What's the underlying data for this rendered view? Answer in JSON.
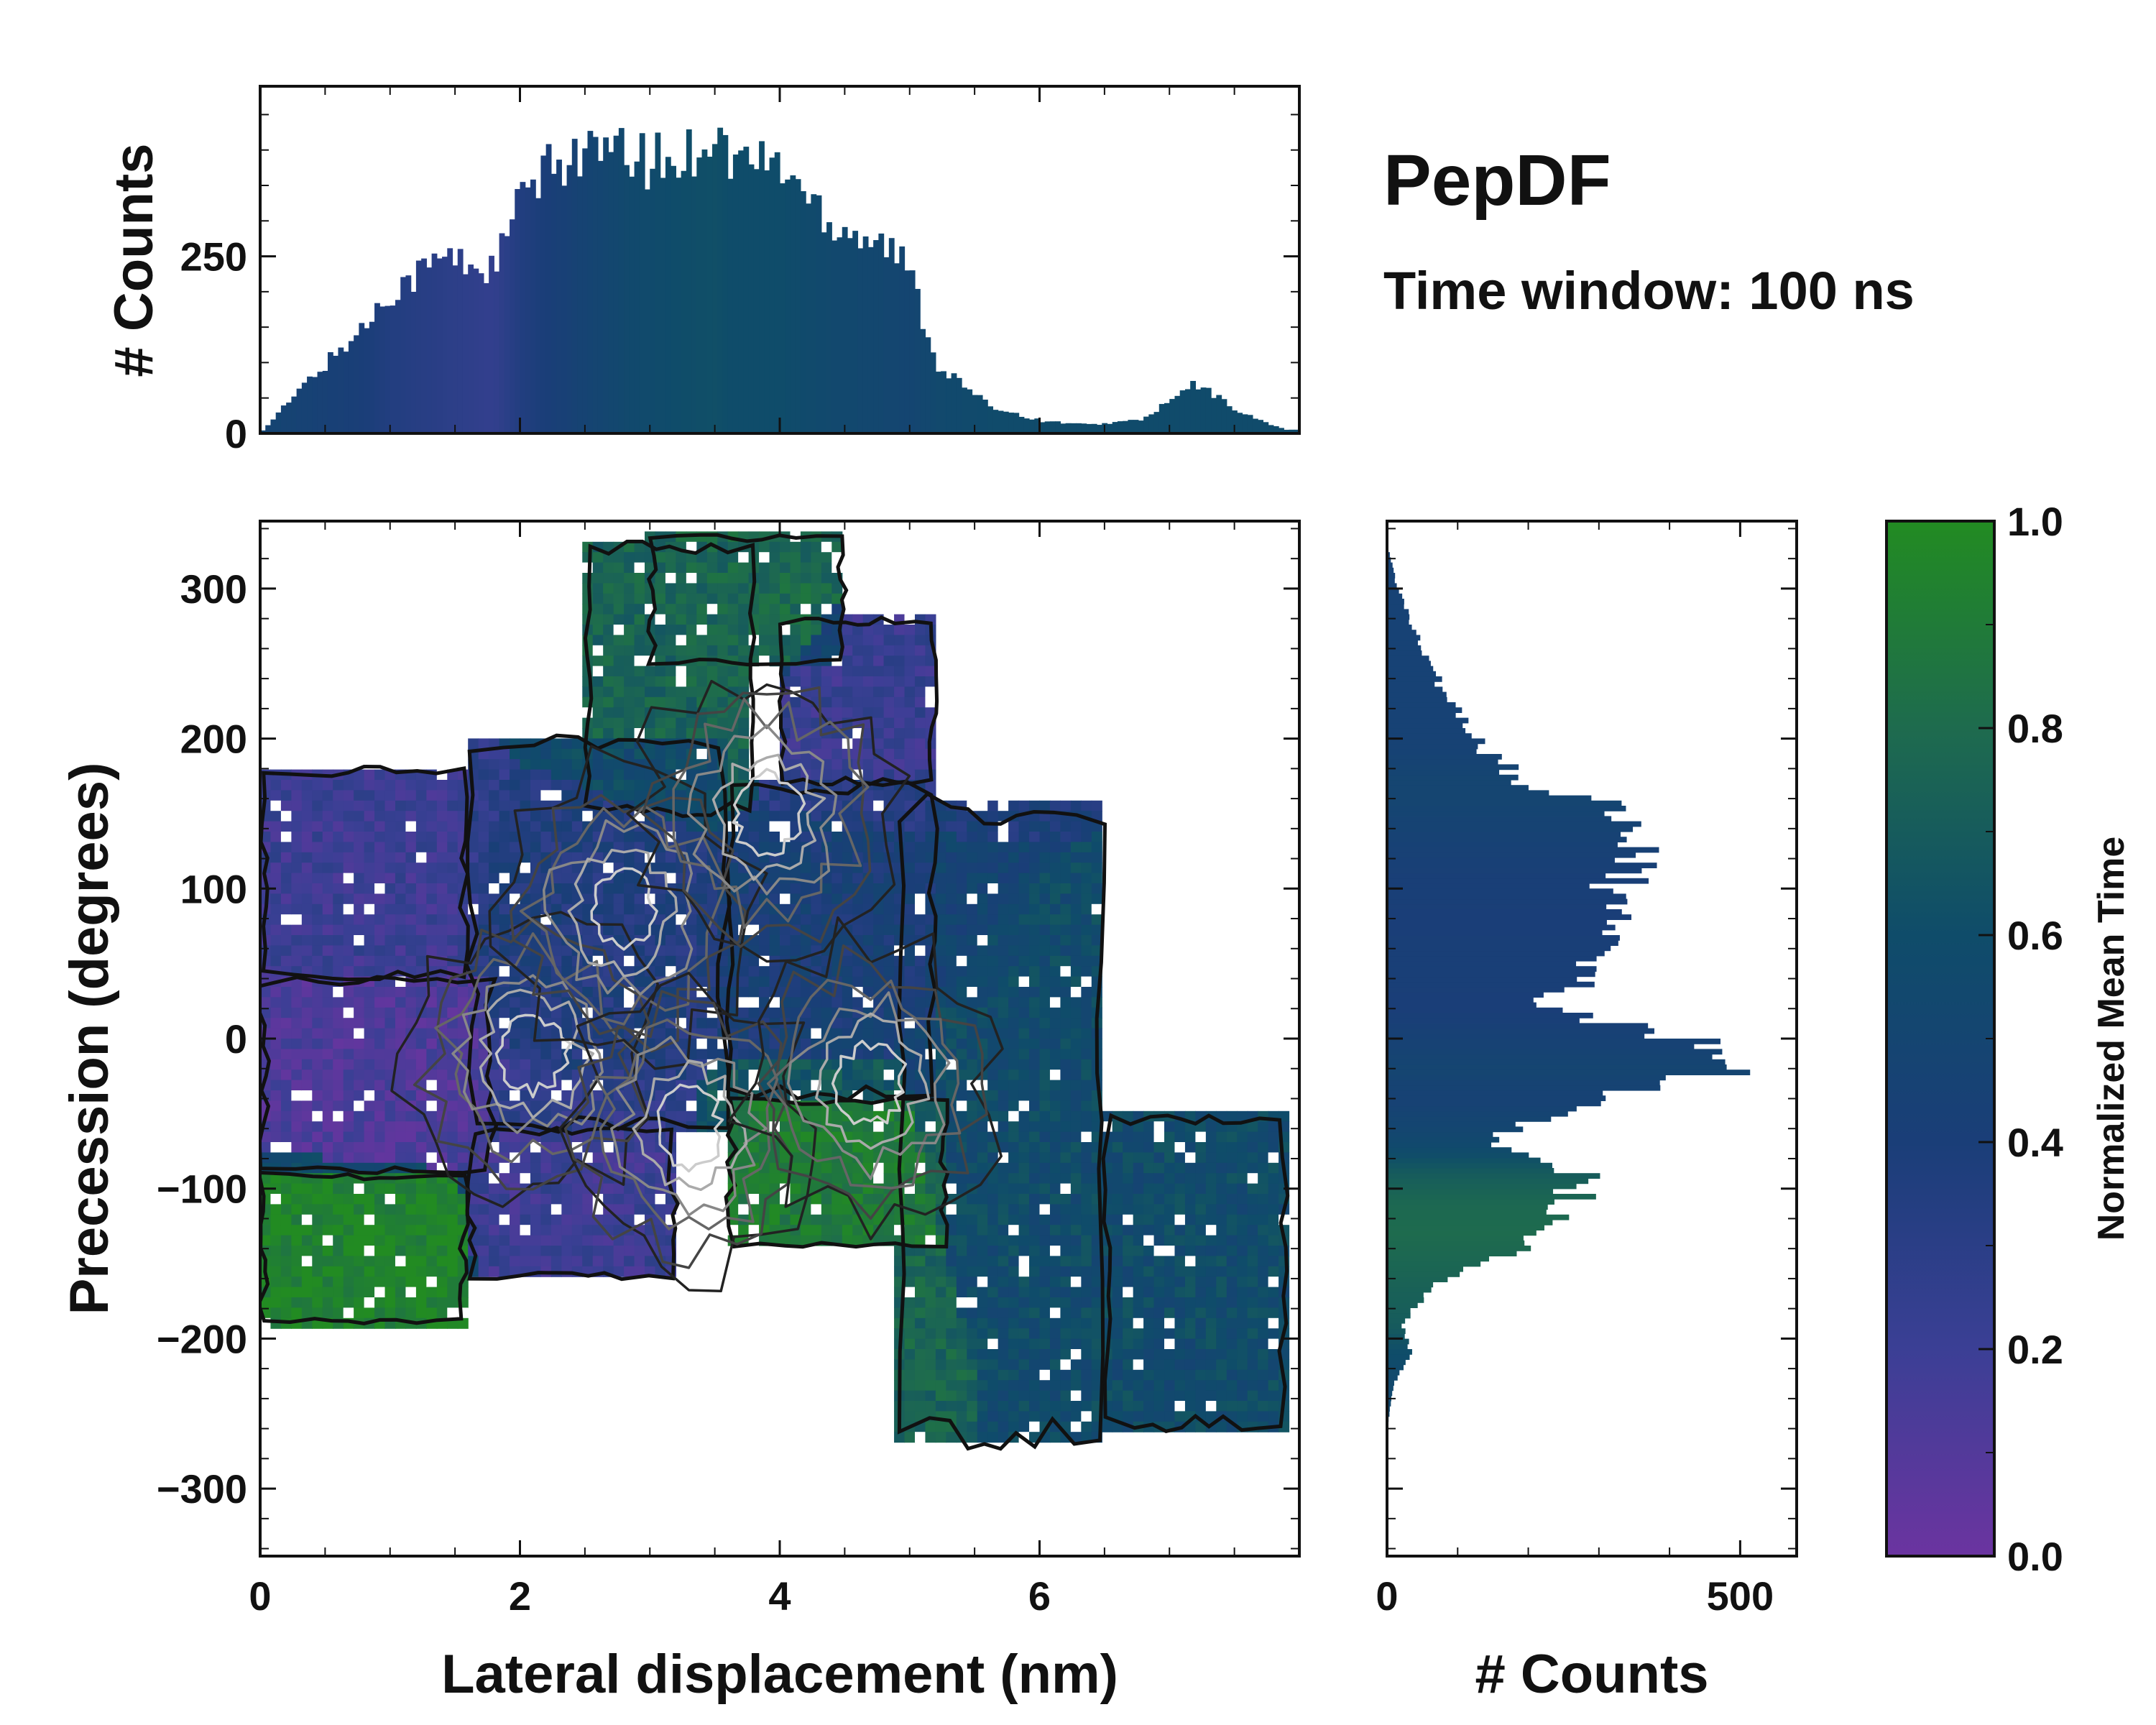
{
  "chart_data": [
    {
      "panel": "main",
      "type": "heatmap",
      "title": "PepDF",
      "subtitle": "Time window: 100 ns",
      "xlabel": "Lateral displacement (nm)",
      "ylabel": "Precession (degrees)",
      "xlim": [
        0,
        8
      ],
      "ylim": [
        -345,
        345
      ],
      "xticks": [
        0,
        2,
        4,
        6
      ],
      "yticks": [
        -300,
        -200,
        -100,
        0,
        100,
        200,
        300
      ],
      "ytick_labels": [
        "−300",
        "−200",
        "−100",
        "0",
        "100",
        "200",
        "300"
      ],
      "color_metric": "Normalized Mean Time",
      "regions": [
        {
          "x": [
            0.0,
            1.6
          ],
          "y": [
            -190,
            -90
          ],
          "mean_time": 0.95
        },
        {
          "x": [
            0.0,
            1.8
          ],
          "y": [
            -90,
            40
          ],
          "mean_time": 0.12
        },
        {
          "x": [
            0.0,
            1.6
          ],
          "y": [
            40,
            180
          ],
          "mean_time": 0.2
        },
        {
          "x": [
            1.6,
            3.2
          ],
          "y": [
            -160,
            -60
          ],
          "mean_time": 0.2
        },
        {
          "x": [
            1.6,
            3.6
          ],
          "y": [
            -60,
            200
          ],
          "mean_time": 0.35
        },
        {
          "x": [
            2.5,
            3.8
          ],
          "y": [
            150,
            330
          ],
          "mean_time": 0.75
        },
        {
          "x": [
            3.0,
            4.5
          ],
          "y": [
            250,
            335
          ],
          "mean_time": 0.78
        },
        {
          "x": [
            3.6,
            5.3
          ],
          "y": [
            -140,
            -40
          ],
          "mean_time": 0.9
        },
        {
          "x": [
            3.6,
            5.2
          ],
          "y": [
            -40,
            170
          ],
          "mean_time": 0.42
        },
        {
          "x": [
            4.0,
            5.2
          ],
          "y": [
            170,
            280
          ],
          "mean_time": 0.22
        },
        {
          "x": [
            4.9,
            6.5
          ],
          "y": [
            -270,
            160
          ],
          "mean_time": 0.58
        },
        {
          "x": [
            6.5,
            7.9
          ],
          "y": [
            -260,
            -50
          ],
          "mean_time": 0.58
        }
      ],
      "density_peaks": [
        {
          "x": 2.1,
          "y": -10
        },
        {
          "x": 2.8,
          "y": 85
        },
        {
          "x": 3.3,
          "y": -60
        },
        {
          "x": 4.7,
          "y": -30
        },
        {
          "x": 3.9,
          "y": 150
        }
      ]
    },
    {
      "panel": "top-marginal",
      "type": "bar",
      "ylabel": "# Counts",
      "xlim": [
        0,
        8
      ],
      "ylim": [
        0,
        490
      ],
      "yticks": [
        0,
        250
      ],
      "x": [
        0.0,
        0.4,
        0.8,
        1.0,
        1.4,
        1.8,
        2.0,
        2.4,
        2.8,
        3.2,
        3.5,
        3.6,
        4.0,
        4.4,
        4.8,
        5.0,
        5.2,
        5.6,
        6.0,
        6.4,
        6.8,
        7.2,
        7.6,
        7.9
      ],
      "values": [
        0,
        80,
        150,
        200,
        250,
        230,
        330,
        400,
        390,
        380,
        430,
        390,
        380,
        300,
        270,
        230,
        100,
        40,
        18,
        12,
        20,
        70,
        25,
        5
      ],
      "color_fraction": [
        0.5,
        0.45,
        0.4,
        0.35,
        0.3,
        0.25,
        0.35,
        0.45,
        0.55,
        0.6,
        0.62,
        0.6,
        0.6,
        0.55,
        0.52,
        0.5,
        0.55,
        0.58,
        0.58,
        0.58,
        0.58,
        0.58,
        0.58,
        0.58
      ]
    },
    {
      "panel": "right-marginal",
      "type": "bar",
      "orientation": "horizontal",
      "xlabel": "# Counts",
      "xlim": [
        0,
        580
      ],
      "xticks": [
        0,
        500
      ],
      "ylim": [
        -345,
        345
      ],
      "y": [
        -260,
        -230,
        -210,
        -190,
        -160,
        -130,
        -110,
        -90,
        -70,
        -40,
        -20,
        0,
        20,
        50,
        80,
        100,
        110,
        130,
        160,
        170,
        200,
        250,
        300,
        330
      ],
      "values": [
        0,
        10,
        35,
        20,
        80,
        230,
        260,
        280,
        130,
        300,
        480,
        420,
        220,
        300,
        320,
        310,
        360,
        360,
        300,
        200,
        120,
        60,
        15,
        0
      ],
      "color_fraction": [
        0.55,
        0.55,
        0.6,
        0.7,
        0.75,
        0.8,
        0.78,
        0.7,
        0.55,
        0.45,
        0.5,
        0.45,
        0.4,
        0.42,
        0.4,
        0.42,
        0.42,
        0.45,
        0.5,
        0.5,
        0.45,
        0.45,
        0.45,
        0.45
      ]
    },
    {
      "panel": "colorbar",
      "type": "colorbar",
      "label": "Normalized Mean Time",
      "range": [
        0.0,
        1.0
      ],
      "ticks": [
        0.0,
        0.2,
        0.4,
        0.6,
        0.8,
        1.0
      ],
      "tick_labels": [
        "0.0",
        "0.2",
        "0.4",
        "0.6",
        "0.8",
        "1.0"
      ],
      "colormap": [
        "#6B34A0",
        "#3B3F95",
        "#1A3E78",
        "#0F4C6A",
        "#1E6B4E",
        "#228B22"
      ]
    }
  ]
}
